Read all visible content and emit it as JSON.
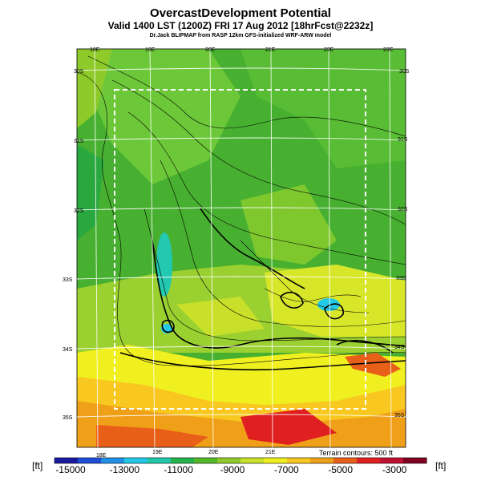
{
  "header": {
    "title": "OvercastDevelopment Potential",
    "valid_line": "Valid 1400 LST (1200Z) FRI 17 Aug 2012 [18hrFcst@2232z]",
    "source_line": "Dr.Jack BLIPMAP from RASP 12km GFS-initialized WRF-ARW model"
  },
  "map": {
    "lon_labels_top": [
      "18E",
      "19E",
      "20E",
      "21E",
      "22E",
      "23E"
    ],
    "lon_labels_bottom": [
      "18E",
      "19E",
      "20E",
      "21E"
    ],
    "lat_labels_left": [
      "30S",
      "31S",
      "32S",
      "33S",
      "34S",
      "35S"
    ],
    "lat_labels_right": [
      "30S",
      "31S",
      "32S",
      "33S",
      "34S",
      "35S"
    ],
    "terrain_note": "Terrain contours: 500 ft"
  },
  "colorbar": {
    "unit_left": "[ft]",
    "unit_right": "[ft]",
    "tick_labels": [
      "-15000",
      "-13000",
      "-11000",
      "-9000",
      "-7000",
      "-5000",
      "-3000"
    ],
    "colors": [
      "#1a1aa0",
      "#1f4fd8",
      "#1f8fe8",
      "#22c8e6",
      "#20c8a8",
      "#22b44a",
      "#52b82a",
      "#8ecb2a",
      "#c8e02a",
      "#f0f020",
      "#f8c820",
      "#f0a018",
      "#e86018",
      "#e02020",
      "#c01030",
      "#800020"
    ]
  }
}
